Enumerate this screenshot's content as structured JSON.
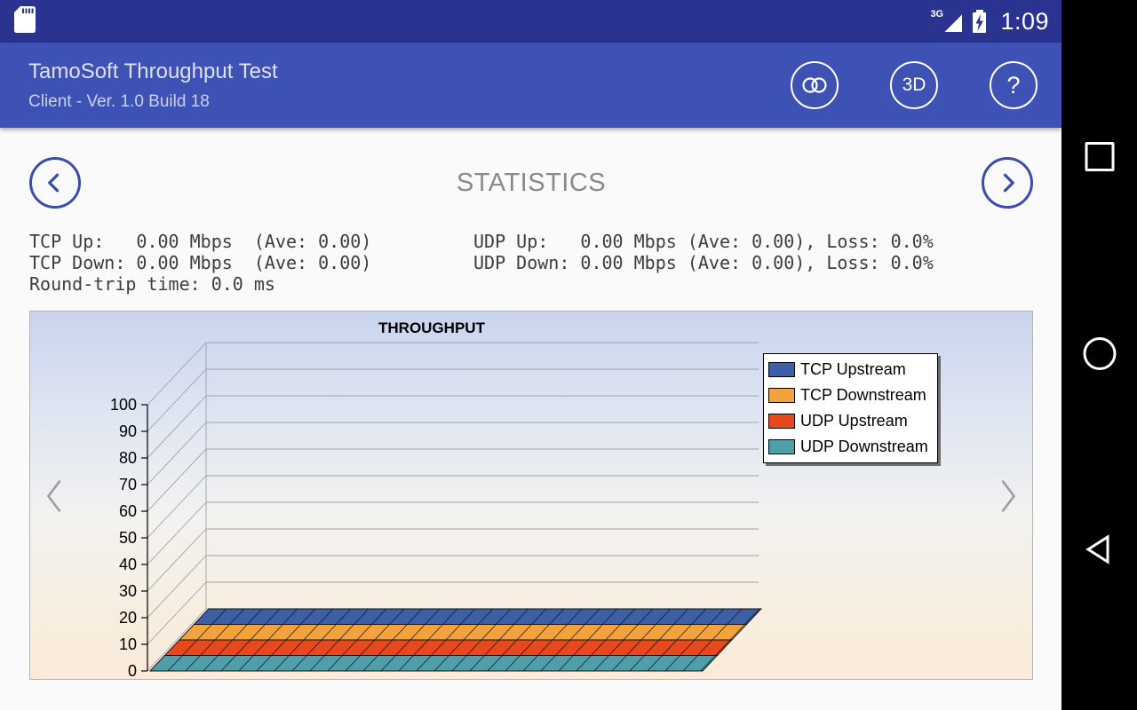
{
  "status_bar": {
    "time": "1:09",
    "network_label": "3G"
  },
  "app_bar": {
    "title": "TamoSoft Throughput Test",
    "subtitle": "Client - Ver. 1.0 Build 18",
    "actions": {
      "threed_label": "3D",
      "help_label": "?"
    }
  },
  "statistics": {
    "heading": "STATISTICS",
    "left_lines": [
      "TCP Up:   0.00 Mbps  (Ave: 0.00)",
      "TCP Down: 0.00 Mbps  (Ave: 0.00)",
      "Round-trip time: 0.0 ms"
    ],
    "right_lines": [
      "UDP Up:   0.00 Mbps (Ave: 0.00), Loss: 0.0%",
      "UDP Down: 0.00 Mbps (Ave: 0.00), Loss: 0.0%"
    ]
  },
  "chart_data": {
    "type": "area",
    "style": "3d-ribbon",
    "title": "THROUGHPUT",
    "xlabel": "",
    "ylabel": "",
    "ylim": [
      0,
      100
    ],
    "y_ticks": [
      0,
      10,
      20,
      30,
      40,
      50,
      60,
      70,
      80,
      90,
      100
    ],
    "grid": true,
    "legend_position": "top-right",
    "series": [
      {
        "name": "TCP Upstream",
        "color": "#3C5FA6",
        "values": [
          0,
          0,
          0,
          0,
          0,
          0,
          0,
          0,
          0,
          0
        ]
      },
      {
        "name": "TCP Downstream",
        "color": "#F2A33C",
        "values": [
          0,
          0,
          0,
          0,
          0,
          0,
          0,
          0,
          0,
          0
        ]
      },
      {
        "name": "UDP Upstream",
        "color": "#E7481C",
        "values": [
          0,
          0,
          0,
          0,
          0,
          0,
          0,
          0,
          0,
          0
        ]
      },
      {
        "name": "UDP Downstream",
        "color": "#4F9FAA",
        "values": [
          0,
          0,
          0,
          0,
          0,
          0,
          0,
          0,
          0,
          0
        ]
      }
    ]
  },
  "colors": {
    "status_bar": "#2A3490",
    "app_bar": "#3E51B5",
    "accent": "#3A4DAF"
  }
}
